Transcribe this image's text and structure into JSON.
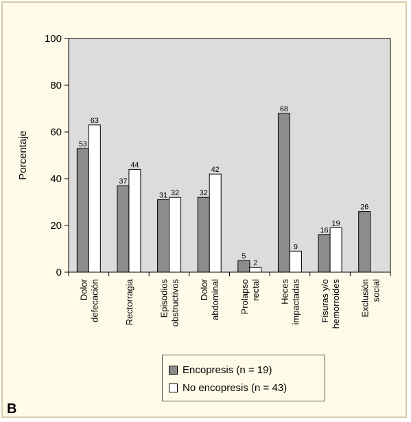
{
  "panel_label": "B",
  "colors": {
    "background": "#fffbe8",
    "plot_area": "#dcdcdc",
    "bar_series_1": "#8c8c8c",
    "bar_series_2": "#ffffff"
  },
  "chart_data": {
    "type": "bar",
    "title": "",
    "xlabel": "",
    "ylabel": "Porcentaje",
    "ylim": [
      0,
      100
    ],
    "yticks": [
      0,
      20,
      40,
      60,
      80,
      100
    ],
    "grid": false,
    "legend_position": "bottom",
    "categories": [
      [
        "Dolor",
        "defecación"
      ],
      [
        "Rectorragia"
      ],
      [
        "Episodios",
        "obstructivos"
      ],
      [
        "Dolor",
        "abdominal"
      ],
      [
        "Prolapso",
        "rectal"
      ],
      [
        "Heces",
        "impactadas"
      ],
      [
        "Fisuras y/o",
        "hemorroides"
      ],
      [
        "Exclusión",
        "social"
      ]
    ],
    "series": [
      {
        "name": "Encopresis (n = 19)",
        "color": "#8c8c8c",
        "values": [
          53,
          37,
          31,
          32,
          5,
          68,
          16,
          26
        ]
      },
      {
        "name": "No encopresis (n = 43)",
        "color": "#ffffff",
        "values": [
          63,
          44,
          32,
          42,
          2,
          9,
          19,
          null
        ]
      }
    ]
  }
}
